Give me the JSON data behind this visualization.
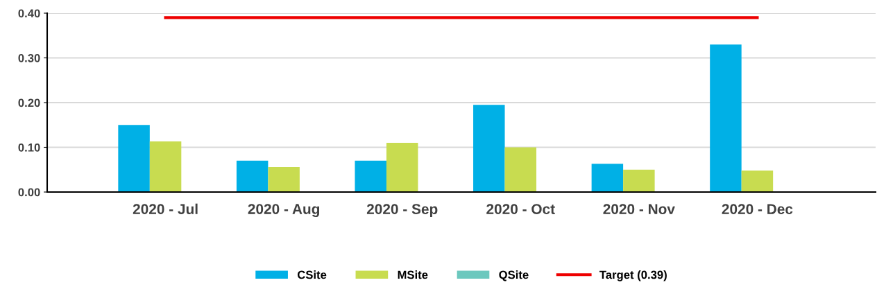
{
  "chart_data": {
    "type": "bar",
    "categories": [
      "2020 - Jul",
      "2020 - Aug",
      "2020 - Sep",
      "2020 - Oct",
      "2020 - Nov",
      "2020 - Dec"
    ],
    "series": [
      {
        "name": "CSite",
        "color": "#00b0e6",
        "values": [
          0.15,
          0.07,
          0.07,
          0.195,
          0.063,
          0.33
        ]
      },
      {
        "name": "MSite",
        "color": "#c8dc50",
        "values": [
          0.113,
          0.056,
          0.11,
          0.1,
          0.05,
          0.048
        ]
      },
      {
        "name": "QSite",
        "color": "#6cc8be",
        "values": [
          null,
          null,
          null,
          null,
          null,
          null
        ]
      },
      {
        "name": "Target (0.39)",
        "type": "line",
        "color": "#ee0000",
        "values": [
          0.39,
          0.39,
          0.39,
          0.39,
          0.39,
          0.39
        ]
      }
    ],
    "ylim": [
      0,
      0.4
    ],
    "yticks": [
      {
        "value": 0,
        "label": "0.00"
      },
      {
        "value": 0.1,
        "label": "0.10"
      },
      {
        "value": 0.2,
        "label": "0.20"
      },
      {
        "value": 0.3,
        "label": "0.30"
      },
      {
        "value": 0.4,
        "label": "0.40"
      }
    ],
    "grid": "y",
    "legend": "bottom",
    "marker": "none",
    "line_style": "solid"
  }
}
